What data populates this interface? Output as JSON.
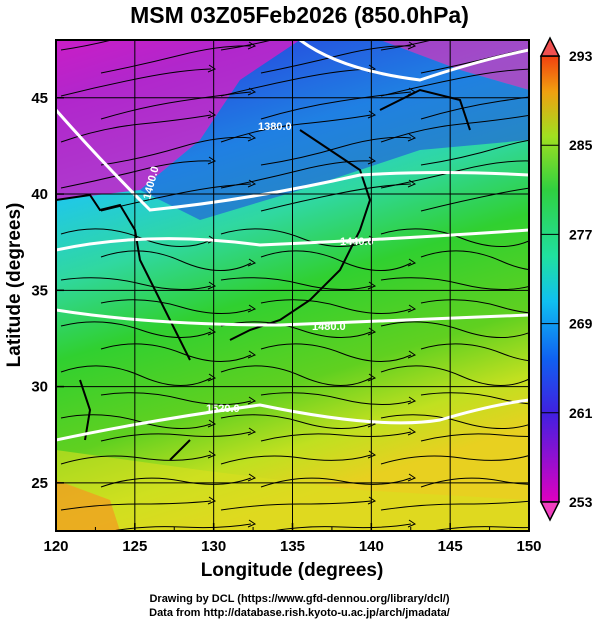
{
  "title": "MSM 03Z05Feb2026 (850.0hPa)",
  "xaxis": {
    "label": "Longitude (degrees)",
    "ticks": [
      "120",
      "125",
      "130",
      "135",
      "140",
      "145",
      "150"
    ]
  },
  "yaxis": {
    "label": "Latitude  (degrees)",
    "ticks": [
      "25",
      "30",
      "35",
      "40",
      "45"
    ]
  },
  "colorbar": {
    "ticks": [
      "293",
      "285",
      "277",
      "269",
      "261",
      "253"
    ]
  },
  "contour_labels": [
    "1380.0",
    "1400.0",
    "1440.0",
    "1480.0",
    "1520.0"
  ],
  "footer": {
    "line1": "Drawing by DCL (https://www.gfd-dennou.org/library/dcl/)",
    "line2": "Data from http://database.rish.kyoto-u.ac.jp/arch/jmadata/"
  },
  "map_data": {
    "type": "heatmap+streamlines+contours",
    "lon_range": [
      120,
      150
    ],
    "lat_range": [
      22.5,
      48
    ],
    "color_range": [
      253,
      293
    ],
    "colors": {
      "cold": "#d000c0",
      "cool": "#1040e0",
      "mid": "#10d0d0",
      "warm": "#30d030",
      "hot": "#e0e020",
      "max": "#f08000"
    }
  }
}
